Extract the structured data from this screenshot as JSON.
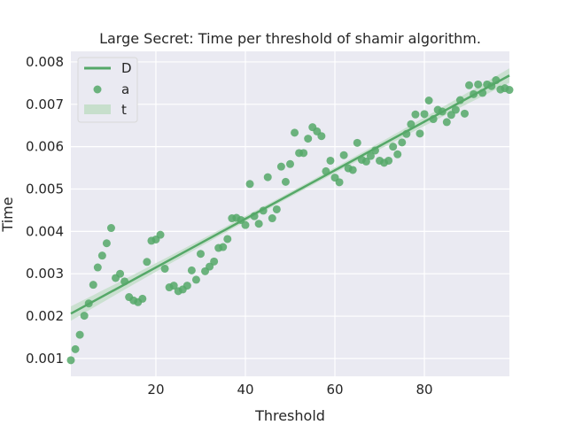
{
  "chart_data": {
    "type": "scatter",
    "title": "Large Secret: Time per threshold of shamir algorithm.",
    "xlabel": "Threshold",
    "ylabel": "Time",
    "xlim": [
      1,
      99
    ],
    "ylim": [
      0.00058,
      0.00825
    ],
    "xticks": [
      20,
      40,
      60,
      80
    ],
    "yticks": [
      0.001,
      0.002,
      0.003,
      0.004,
      0.005,
      0.006,
      0.007,
      0.008
    ],
    "grid": true,
    "legend": {
      "placement": "top-left",
      "entries": [
        {
          "label": "D",
          "kind": "line"
        },
        {
          "label": "a",
          "kind": "marker"
        },
        {
          "label": "t",
          "kind": "band"
        }
      ]
    },
    "colors": {
      "series": "#55a868",
      "band": "#c7dfcc",
      "background": "#eaeaf2",
      "grid": "#ffffff"
    },
    "series": [
      {
        "x": [
          1,
          2,
          3,
          4,
          5,
          6,
          7,
          8,
          9,
          10,
          11,
          12,
          13,
          14,
          15,
          16,
          17,
          18,
          19,
          20,
          21,
          22,
          23,
          24,
          25,
          26,
          27,
          28,
          29,
          30,
          31,
          32,
          33,
          34,
          35,
          36,
          37,
          38,
          39,
          40,
          41,
          42,
          43,
          44,
          45,
          46,
          47,
          48,
          49,
          50,
          51,
          52,
          53,
          54,
          55,
          56,
          57,
          58,
          59,
          60,
          61,
          62,
          63,
          64,
          65,
          66,
          67,
          68,
          69,
          70,
          71,
          72,
          73,
          74,
          75,
          76,
          77,
          78,
          79,
          80,
          81,
          82,
          83,
          84,
          85,
          86,
          87,
          88,
          89,
          90,
          91,
          92,
          93,
          94,
          95,
          96,
          97,
          98,
          99
        ],
        "y": [
          0.00096,
          0.00122,
          0.00156,
          0.00201,
          0.0023,
          0.00274,
          0.00315,
          0.00343,
          0.00372,
          0.00408,
          0.0029,
          0.003,
          0.00282,
          0.00245,
          0.00237,
          0.00233,
          0.00241,
          0.00328,
          0.00378,
          0.00381,
          0.00392,
          0.00312,
          0.00268,
          0.00272,
          0.00259,
          0.00263,
          0.00272,
          0.00308,
          0.00286,
          0.00347,
          0.00306,
          0.00317,
          0.00329,
          0.00361,
          0.00363,
          0.00382,
          0.00431,
          0.00432,
          0.00427,
          0.00415,
          0.00512,
          0.00436,
          0.00418,
          0.00449,
          0.00528,
          0.00431,
          0.00452,
          0.00553,
          0.00517,
          0.00559,
          0.00633,
          0.00585,
          0.00585,
          0.00619,
          0.00646,
          0.00636,
          0.00625,
          0.00542,
          0.00567,
          0.00527,
          0.00516,
          0.0058,
          0.00549,
          0.00545,
          0.00609,
          0.00569,
          0.00565,
          0.00578,
          0.00591,
          0.00567,
          0.00562,
          0.00567,
          0.006,
          0.00582,
          0.0061,
          0.0063,
          0.00653,
          0.00676,
          0.00631,
          0.00677,
          0.00709,
          0.00665,
          0.00687,
          0.00683,
          0.00658,
          0.00675,
          0.00687,
          0.0071,
          0.00678,
          0.00745,
          0.00724,
          0.00747,
          0.00727,
          0.00747,
          0.00743,
          0.00757,
          0.00735,
          0.00738,
          0.00734
        ]
      }
    ],
    "regression": {
      "x": [
        1,
        99
      ],
      "y": [
        0.00206,
        0.00768
      ],
      "ci_halfwidth_ends": 0.00017,
      "ci_halfwidth_mid": 6e-05
    }
  }
}
